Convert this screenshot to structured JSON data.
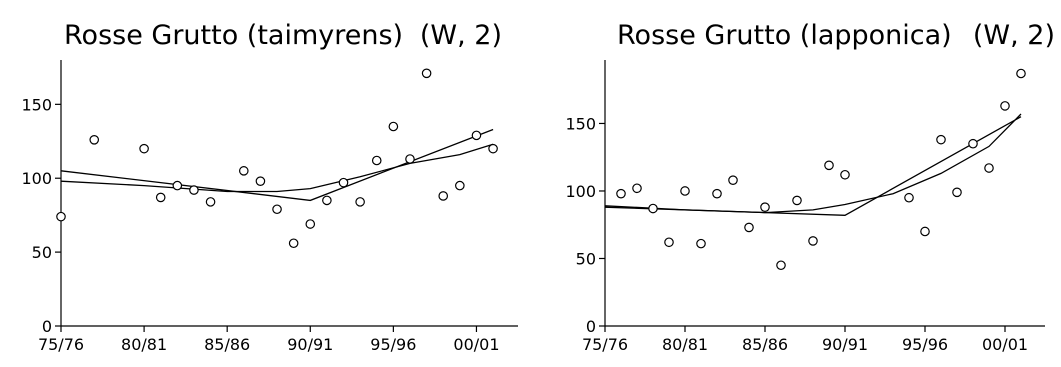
{
  "chart_data": [
    {
      "type": "scatter",
      "title": "Rosse Grutto (taimyrens)",
      "title_suffix": "(W, 2)",
      "xlabel": "",
      "ylabel": "",
      "categories": [
        "75/76",
        "80/81",
        "85/86",
        "90/91",
        "95/96",
        "00/01"
      ],
      "category_years": [
        1975,
        1980,
        1985,
        1990,
        1995,
        2000
      ],
      "y_ticks": [
        0,
        50,
        100,
        150
      ],
      "ylim": [
        0,
        180
      ],
      "xlim": [
        1975,
        2002.5
      ],
      "grid": false,
      "points": [
        {
          "x": 1975,
          "y": 74
        },
        {
          "x": 1977,
          "y": 126
        },
        {
          "x": 1980,
          "y": 120
        },
        {
          "x": 1981,
          "y": 87
        },
        {
          "x": 1982,
          "y": 95
        },
        {
          "x": 1983,
          "y": 92
        },
        {
          "x": 1984,
          "y": 84
        },
        {
          "x": 1986,
          "y": 105
        },
        {
          "x": 1987,
          "y": 98
        },
        {
          "x": 1988,
          "y": 79
        },
        {
          "x": 1989,
          "y": 56
        },
        {
          "x": 1990,
          "y": 69
        },
        {
          "x": 1991,
          "y": 85
        },
        {
          "x": 1992,
          "y": 97
        },
        {
          "x": 1993,
          "y": 84
        },
        {
          "x": 1994,
          "y": 112
        },
        {
          "x": 1995,
          "y": 135
        },
        {
          "x": 1996,
          "y": 113
        },
        {
          "x": 1997,
          "y": 171
        },
        {
          "x": 1998,
          "y": 88
        },
        {
          "x": 1999,
          "y": 95
        },
        {
          "x": 2000,
          "y": 129
        },
        {
          "x": 2001,
          "y": 120
        }
      ],
      "series": [
        {
          "points": [
            [
              1975,
              105
            ],
            [
              1990,
              85
            ],
            [
              2001,
              133
            ]
          ]
        },
        {
          "points": [
            [
              1975,
              98
            ],
            [
              1980,
              95
            ],
            [
              1985,
              91
            ],
            [
              1988,
              91
            ],
            [
              1990,
              93
            ],
            [
              1993,
              101
            ],
            [
              1996,
              110
            ],
            [
              1999,
              116
            ],
            [
              2001,
              123
            ]
          ]
        }
      ]
    },
    {
      "type": "scatter",
      "title": "Rosse Grutto (lapponica)",
      "title_suffix": "(W, 2)",
      "xlabel": "",
      "ylabel": "",
      "categories": [
        "75/76",
        "80/81",
        "85/86",
        "90/91",
        "95/96",
        "00/01"
      ],
      "category_years": [
        1975,
        1980,
        1985,
        1990,
        1995,
        2000
      ],
      "y_ticks": [
        0,
        50,
        100,
        150
      ],
      "ylim": [
        0,
        197
      ],
      "xlim": [
        1975,
        2002.5
      ],
      "grid": false,
      "points": [
        {
          "x": 1976,
          "y": 98
        },
        {
          "x": 1977,
          "y": 102
        },
        {
          "x": 1978,
          "y": 87
        },
        {
          "x": 1979,
          "y": 62
        },
        {
          "x": 1980,
          "y": 100
        },
        {
          "x": 1981,
          "y": 61
        },
        {
          "x": 1982,
          "y": 98
        },
        {
          "x": 1983,
          "y": 108
        },
        {
          "x": 1984,
          "y": 73
        },
        {
          "x": 1985,
          "y": 88
        },
        {
          "x": 1986,
          "y": 45
        },
        {
          "x": 1987,
          "y": 93
        },
        {
          "x": 1988,
          "y": 63
        },
        {
          "x": 1989,
          "y": 119
        },
        {
          "x": 1990,
          "y": 112
        },
        {
          "x": 1994,
          "y": 95
        },
        {
          "x": 1995,
          "y": 70
        },
        {
          "x": 1996,
          "y": 138
        },
        {
          "x": 1997,
          "y": 99
        },
        {
          "x": 1998,
          "y": 135
        },
        {
          "x": 1999,
          "y": 117
        },
        {
          "x": 2000,
          "y": 163
        },
        {
          "x": 2001,
          "y": 187
        }
      ],
      "series": [
        {
          "points": [
            [
              1975,
              88
            ],
            [
              1990,
              82
            ],
            [
              2001,
              155
            ]
          ]
        },
        {
          "points": [
            [
              1975,
              89
            ],
            [
              1980,
              86
            ],
            [
              1985,
              84
            ],
            [
              1988,
              86
            ],
            [
              1990,
              90
            ],
            [
              1993,
              98
            ],
            [
              1996,
              113
            ],
            [
              1999,
              133
            ],
            [
              2001,
              157
            ]
          ]
        }
      ]
    }
  ]
}
